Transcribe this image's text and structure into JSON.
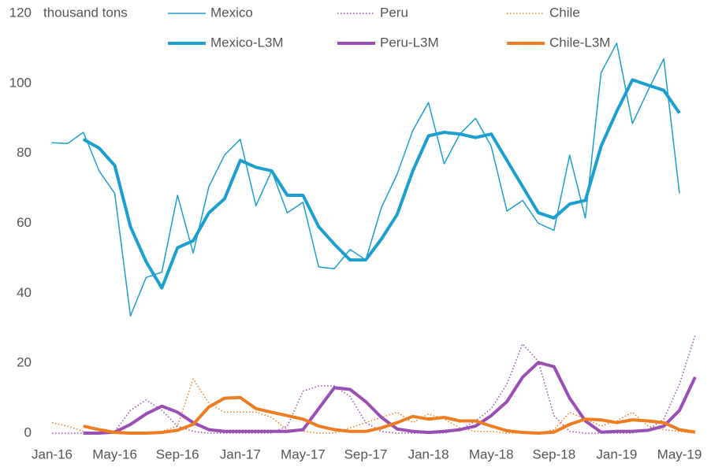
{
  "chart_data": {
    "type": "line",
    "y_axis_label": "thousand tons",
    "categories": [
      "Jan-16",
      null,
      null,
      null,
      "May-16",
      null,
      null,
      null,
      "Sep-16",
      null,
      null,
      null,
      "Jan-17",
      null,
      null,
      null,
      "May-17",
      null,
      null,
      null,
      "Sep-17",
      null,
      null,
      null,
      "Jan-18",
      null,
      null,
      null,
      "May-18",
      null,
      null,
      null,
      "Sep-18",
      null,
      null,
      null,
      "Jan-19",
      null,
      null,
      null,
      "May-19",
      null
    ],
    "series": [
      {
        "name": "Mexico",
        "color": "#1a9fcf",
        "style": "solid",
        "width": 1.5,
        "values": [
          83,
          82.8,
          86,
          75,
          68.5,
          33.5,
          44.5,
          46,
          68,
          51.5,
          70.5,
          79.5,
          84,
          65,
          75,
          63,
          66,
          47.5,
          47,
          52.5,
          49.5,
          64.5,
          74,
          86.5,
          94.5,
          77,
          85.5,
          90,
          82,
          63.5,
          66.5,
          60,
          58,
          79.5,
          61.5,
          103,
          111.5,
          88.5,
          98,
          107,
          68.5,
          null
        ]
      },
      {
        "name": "Peru",
        "color": "#9b4fb5",
        "style": "dotted",
        "width": 1.5,
        "values": [
          0,
          0,
          0,
          0,
          0.5,
          6.5,
          9.5,
          6.5,
          2,
          0.5,
          0,
          0,
          0,
          0,
          0,
          2,
          12,
          13.5,
          13.5,
          10.5,
          3,
          0.5,
          0,
          0,
          0,
          0,
          1,
          3.5,
          7,
          14,
          25.5,
          20.5,
          5,
          0.5,
          0,
          0,
          0,
          0,
          1,
          4,
          14,
          28
        ]
      },
      {
        "name": "Chile",
        "color": "#ee7d22",
        "style": "dotted",
        "width": 1.5,
        "values": [
          3,
          2,
          0.5,
          0,
          0,
          0,
          0,
          0.5,
          2,
          15.5,
          8.5,
          6,
          6,
          6,
          4.5,
          1,
          0.5,
          0,
          0,
          1.5,
          3,
          4.5,
          6,
          3,
          5.5,
          4,
          1.5,
          0.5,
          0.5,
          0,
          0,
          0,
          1,
          6,
          4,
          2,
          3.5,
          6,
          2,
          1,
          0.5,
          0
        ]
      },
      {
        "name": "Mexico-L3M",
        "color": "#1a9fcf",
        "style": "solid",
        "width": 4,
        "values": [
          null,
          null,
          84,
          81.5,
          76.5,
          59,
          49,
          41.5,
          53,
          55,
          63,
          67,
          78,
          76,
          75,
          68,
          68,
          59,
          54,
          49.5,
          49.5,
          55.5,
          62.5,
          75,
          85,
          86,
          85.5,
          84.5,
          85.5,
          78,
          70.5,
          63,
          61.5,
          65.5,
          66.5,
          82,
          92,
          101,
          99.5,
          98,
          91.5,
          null
        ]
      },
      {
        "name": "Peru-L3M",
        "color": "#9b4fb5",
        "style": "solid",
        "width": 4,
        "values": [
          null,
          null,
          0,
          0,
          0.3,
          2.5,
          5.5,
          7.7,
          6,
          3,
          1,
          0.5,
          0.5,
          0.5,
          0.5,
          0.5,
          1,
          7,
          13,
          12.5,
          9,
          4.5,
          1.2,
          0.5,
          0.2,
          0.5,
          1,
          2,
          5,
          9,
          16,
          20.2,
          19,
          10,
          3.5,
          0.3,
          0.5,
          0.5,
          0.8,
          2,
          6.5,
          16
        ]
      },
      {
        "name": "Chile-L3M",
        "color": "#ee7d22",
        "style": "solid",
        "width": 4,
        "values": [
          null,
          null,
          2,
          1,
          0.2,
          0,
          0,
          0.2,
          0.8,
          2.5,
          7.5,
          10,
          10.2,
          7,
          6,
          5,
          4,
          2,
          1,
          0.5,
          0.5,
          1.5,
          3,
          4.8,
          4,
          4.5,
          3.5,
          3.5,
          2,
          0.7,
          0.2,
          0,
          0.3,
          2.5,
          4,
          3.8,
          3,
          3.8,
          3.5,
          3,
          1,
          0.3
        ]
      }
    ],
    "ylim": [
      0,
      120
    ],
    "yticks": [
      0,
      20,
      40,
      60,
      80,
      100,
      120
    ],
    "grid": false
  }
}
